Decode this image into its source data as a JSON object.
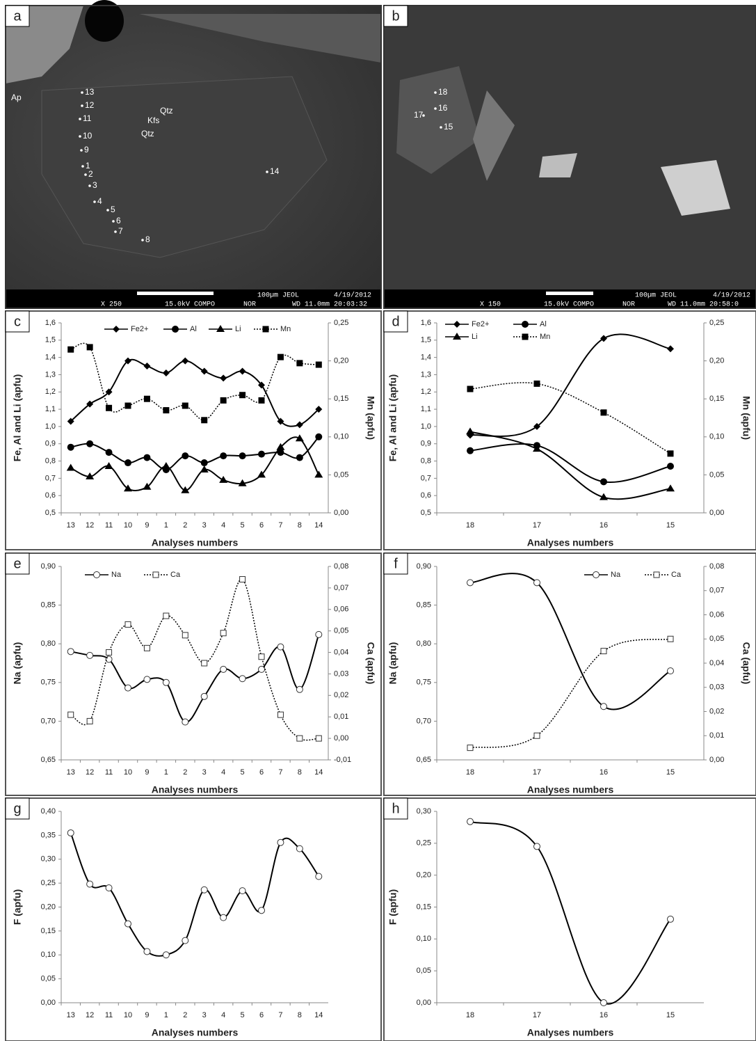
{
  "images": [
    {
      "letter": "a",
      "labels": [
        "13",
        "12",
        "11",
        "10",
        "9",
        "1",
        "2",
        "3",
        "4",
        "5",
        "6",
        "7",
        "8",
        "14",
        "Qtz",
        "Kfs",
        "Qtz",
        "Ap"
      ],
      "footer": [
        "X 250",
        "15.0kV COMPO",
        "NOR",
        "WD 11.0mm 20:03:32",
        "100µm JEOL",
        "4/19/2012"
      ]
    },
    {
      "letter": "b",
      "labels": [
        "18",
        "16",
        "17",
        "15"
      ],
      "footer": [
        "X 150",
        "15.0kV COMPO",
        "NOR",
        "WD 11.0mm 20:58:0",
        "100µm JEOL",
        "4/19/2012"
      ]
    }
  ],
  "chart_data": [
    {
      "type": "line",
      "letter": "c",
      "ylabel": "Fe, Al and Li (apfu)",
      "y2label": "Mn (apfu)",
      "xlabel": "Analyses numbers",
      "categories": [
        "13",
        "12",
        "11",
        "10",
        "9",
        "1",
        "2",
        "3",
        "4",
        "5",
        "6",
        "7",
        "8",
        "14"
      ],
      "series": [
        {
          "name": "Fe2+",
          "color": "#000",
          "marker": "diamond",
          "line_style": "solid",
          "values": [
            1.03,
            1.13,
            1.2,
            1.38,
            1.35,
            1.31,
            1.38,
            1.32,
            1.28,
            1.32,
            1.24,
            1.03,
            1.01,
            1.1
          ]
        },
        {
          "name": "Al",
          "color": "#000",
          "marker": "circle",
          "line_style": "solid",
          "values": [
            0.88,
            0.9,
            0.85,
            0.79,
            0.82,
            0.75,
            0.83,
            0.79,
            0.83,
            0.83,
            0.84,
            0.85,
            0.82,
            0.94
          ]
        },
        {
          "name": "Li",
          "color": "#000",
          "marker": "triangle",
          "line_style": "solid",
          "values": [
            0.76,
            0.71,
            0.77,
            0.64,
            0.65,
            0.77,
            0.63,
            0.75,
            0.69,
            0.67,
            0.72,
            0.88,
            0.93,
            0.72
          ]
        },
        {
          "name": "Mn",
          "color": "#000",
          "marker": "square",
          "line_style": "dotted",
          "axis": "y2",
          "values": [
            0.215,
            0.218,
            0.138,
            0.141,
            0.15,
            0.135,
            0.141,
            0.122,
            0.148,
            0.155,
            0.148,
            0.205,
            0.197,
            0.195
          ]
        }
      ],
      "ylim": [
        0.5,
        1.6
      ],
      "yticks": [
        {
          "value": 0.5,
          "label": "0,5"
        },
        {
          "value": 0.6,
          "label": "0,6"
        },
        {
          "value": 0.7,
          "label": "0,7"
        },
        {
          "value": 0.8,
          "label": "0,8"
        },
        {
          "value": 0.9,
          "label": "0,9"
        },
        {
          "value": 1.0,
          "label": "1,0"
        },
        {
          "value": 1.1,
          "label": "1,1"
        },
        {
          "value": 1.2,
          "label": "1,2"
        },
        {
          "value": 1.3,
          "label": "1,3"
        },
        {
          "value": 1.4,
          "label": "1,4"
        },
        {
          "value": 1.5,
          "label": "1,5"
        },
        {
          "value": 1.6,
          "label": "1,6"
        }
      ],
      "y2lim": [
        0,
        0.25
      ],
      "y2ticks": [
        {
          "value": 0,
          "label": "0,00"
        },
        {
          "value": 0.05,
          "label": "0,05"
        },
        {
          "value": 0.1,
          "label": "0,10"
        },
        {
          "value": 0.15,
          "label": "0,15"
        },
        {
          "value": 0.2,
          "label": "0,20"
        },
        {
          "value": 0.25,
          "label": "0,25"
        }
      ]
    },
    {
      "type": "line",
      "letter": "d",
      "ylabel": "Fe, Al and Li (apfu)",
      "y2label": "Mn (apfu)",
      "xlabel": "Analyses numbers",
      "categories": [
        "18",
        "17",
        "16",
        "15"
      ],
      "series": [
        {
          "name": "Fe2+",
          "color": "#000",
          "marker": "diamond",
          "line_style": "solid",
          "values": [
            0.95,
            1.0,
            1.51,
            1.45
          ]
        },
        {
          "name": "Al",
          "color": "#000",
          "marker": "circle",
          "line_style": "solid",
          "values": [
            0.86,
            0.89,
            0.68,
            0.77
          ]
        },
        {
          "name": "Li",
          "color": "#000",
          "marker": "triangle",
          "line_style": "solid",
          "values": [
            0.97,
            0.87,
            0.59,
            0.64
          ]
        },
        {
          "name": "Mn",
          "color": "#000",
          "marker": "square",
          "line_style": "dotted",
          "axis": "y2",
          "values": [
            0.163,
            0.17,
            0.132,
            0.078
          ]
        }
      ],
      "ylim": [
        0.5,
        1.6
      ],
      "yticks": [
        {
          "value": 0.5,
          "label": "0,5"
        },
        {
          "value": 0.6,
          "label": "0,6"
        },
        {
          "value": 0.7,
          "label": "0,7"
        },
        {
          "value": 0.8,
          "label": "0,8"
        },
        {
          "value": 0.9,
          "label": "0,9"
        },
        {
          "value": 1.0,
          "label": "1,0"
        },
        {
          "value": 1.1,
          "label": "1,1"
        },
        {
          "value": 1.2,
          "label": "1,2"
        },
        {
          "value": 1.3,
          "label": "1,3"
        },
        {
          "value": 1.4,
          "label": "1,4"
        },
        {
          "value": 1.5,
          "label": "1,5"
        },
        {
          "value": 1.6,
          "label": "1,6"
        }
      ],
      "y2lim": [
        0,
        0.25
      ],
      "y2ticks": [
        {
          "value": 0,
          "label": "0,00"
        },
        {
          "value": 0.05,
          "label": "0,05"
        },
        {
          "value": 0.1,
          "label": "0,10"
        },
        {
          "value": 0.15,
          "label": "0,15"
        },
        {
          "value": 0.2,
          "label": "0,20"
        },
        {
          "value": 0.25,
          "label": "0,25"
        }
      ]
    },
    {
      "type": "line",
      "letter": "e",
      "ylabel": "Na (apfu)",
      "y2label": "Ca (apfu)",
      "xlabel": "Analyses numbers",
      "categories": [
        "13",
        "12",
        "11",
        "10",
        "9",
        "1",
        "2",
        "3",
        "4",
        "5",
        "6",
        "7",
        "8",
        "14"
      ],
      "series": [
        {
          "name": "Na",
          "color": "#000",
          "marker": "open-circle",
          "line_style": "solid",
          "values": [
            0.79,
            0.785,
            0.78,
            0.743,
            0.754,
            0.75,
            0.699,
            0.732,
            0.767,
            0.755,
            0.767,
            0.796,
            0.741,
            0.812
          ]
        },
        {
          "name": "Ca",
          "color": "#000",
          "marker": "open-square",
          "line_style": "dotted",
          "axis": "y2",
          "values": [
            0.011,
            0.008,
            0.04,
            0.053,
            0.042,
            0.057,
            0.048,
            0.035,
            0.049,
            0.074,
            0.038,
            0.011,
            0.0,
            0.0
          ]
        }
      ],
      "ylim": [
        0.65,
        0.9
      ],
      "yticks": [
        {
          "value": 0.65,
          "label": "0,65"
        },
        {
          "value": 0.7,
          "label": "0,70"
        },
        {
          "value": 0.75,
          "label": "0,75"
        },
        {
          "value": 0.8,
          "label": "0,80"
        },
        {
          "value": 0.85,
          "label": "0,85"
        },
        {
          "value": 0.9,
          "label": "0,90"
        }
      ],
      "y2lim": [
        -0.01,
        0.08
      ],
      "y2ticks": [
        {
          "value": -0.01,
          "label": "-0,01"
        },
        {
          "value": 0,
          "label": "0,00"
        },
        {
          "value": 0.01,
          "label": "0,01"
        },
        {
          "value": 0.02,
          "label": "0,02"
        },
        {
          "value": 0.03,
          "label": "0,03"
        },
        {
          "value": 0.04,
          "label": "0,04"
        },
        {
          "value": 0.05,
          "label": "0,05"
        },
        {
          "value": 0.06,
          "label": "0,06"
        },
        {
          "value": 0.07,
          "label": "0,07"
        },
        {
          "value": 0.08,
          "label": "0,08"
        }
      ]
    },
    {
      "type": "line",
      "letter": "f",
      "ylabel": "Na (apfu)",
      "y2label": "Ca (apfu)",
      "xlabel": "Analyses numbers",
      "categories": [
        "18",
        "17",
        "16",
        "15"
      ],
      "series": [
        {
          "name": "Na",
          "color": "#000",
          "marker": "open-circle",
          "line_style": "solid",
          "values": [
            0.879,
            0.879,
            0.719,
            0.765
          ]
        },
        {
          "name": "Ca",
          "color": "#000",
          "marker": "open-square",
          "line_style": "dotted",
          "axis": "y2",
          "values": [
            0.005,
            0.01,
            0.045,
            0.05
          ]
        }
      ],
      "ylim": [
        0.65,
        0.9
      ],
      "yticks": [
        {
          "value": 0.65,
          "label": "0,65"
        },
        {
          "value": 0.7,
          "label": "0,70"
        },
        {
          "value": 0.75,
          "label": "0,75"
        },
        {
          "value": 0.8,
          "label": "0,80"
        },
        {
          "value": 0.85,
          "label": "0,85"
        },
        {
          "value": 0.9,
          "label": "0,90"
        }
      ],
      "y2lim": [
        0,
        0.08
      ],
      "y2ticks": [
        {
          "value": 0,
          "label": "0,00"
        },
        {
          "value": 0.01,
          "label": "0,01"
        },
        {
          "value": 0.02,
          "label": "0,02"
        },
        {
          "value": 0.03,
          "label": "0,03"
        },
        {
          "value": 0.04,
          "label": "0,04"
        },
        {
          "value": 0.05,
          "label": "0,05"
        },
        {
          "value": 0.06,
          "label": "0,06"
        },
        {
          "value": 0.07,
          "label": "0,07"
        },
        {
          "value": 0.08,
          "label": "0,08"
        }
      ]
    },
    {
      "type": "line",
      "letter": "g",
      "ylabel": "F (apfu)",
      "xlabel": "Analyses numbers",
      "categories": [
        "13",
        "12",
        "11",
        "10",
        "9",
        "1",
        "2",
        "3",
        "4",
        "5",
        "6",
        "7",
        "8",
        "14"
      ],
      "series": [
        {
          "color": "#000",
          "marker": "open-circle",
          "line_style": "solid",
          "values": [
            0.355,
            0.248,
            0.24,
            0.165,
            0.107,
            0.1,
            0.13,
            0.236,
            0.178,
            0.234,
            0.193,
            0.335,
            0.322,
            0.264
          ]
        }
      ],
      "ylim": [
        0,
        0.4
      ],
      "yticks": [
        {
          "value": 0,
          "label": "0,00"
        },
        {
          "value": 0.05,
          "label": "0,05"
        },
        {
          "value": 0.1,
          "label": "0,10"
        },
        {
          "value": 0.15,
          "label": "0,15"
        },
        {
          "value": 0.2,
          "label": "0,20"
        },
        {
          "value": 0.25,
          "label": "0,25"
        },
        {
          "value": 0.3,
          "label": "0,30"
        },
        {
          "value": 0.35,
          "label": "0,35"
        },
        {
          "value": 0.4,
          "label": "0,40"
        }
      ]
    },
    {
      "type": "line",
      "letter": "h",
      "ylabel": "F (apfu)",
      "xlabel": "Analyses numbers",
      "categories": [
        "18",
        "17",
        "16",
        "15"
      ],
      "series": [
        {
          "color": "#000",
          "marker": "open-circle",
          "line_style": "solid",
          "values": [
            0.284,
            0.245,
            0.0,
            0.131
          ]
        }
      ],
      "ylim": [
        0,
        0.3
      ],
      "yticks": [
        {
          "value": 0,
          "label": "0,00"
        },
        {
          "value": 0.05,
          "label": "0,05"
        },
        {
          "value": 0.1,
          "label": "0,10"
        },
        {
          "value": 0.15,
          "label": "0,15"
        },
        {
          "value": 0.2,
          "label": "0,20"
        },
        {
          "value": 0.25,
          "label": "0,25"
        },
        {
          "value": 0.3,
          "label": "0,30"
        }
      ]
    }
  ]
}
